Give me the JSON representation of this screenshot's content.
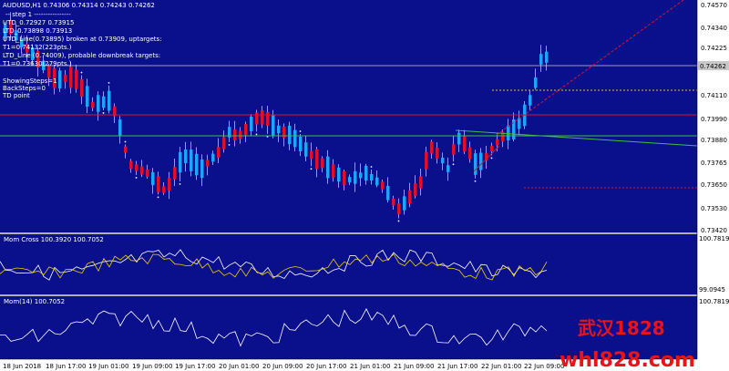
{
  "header": {
    "symbol_line": "AUDUSD,H1  0.74306 0.74314 0.74243 0.74262",
    "step_line": "-- step 1  ----------------",
    "info_lines": [
      "UTD_0.72927  0.73915",
      "LTD_0.73898  0.73913",
      "UTD_Line(0.73895) broken at 0.73909, uptargets:",
      "T1=0.74132(223pts.)",
      "LTD_Line (0.74009), probable downbreak targets:",
      "T1=0.73630(279pts.)"
    ],
    "status_lines": [
      "ShowingSteps=1",
      "BackSteps=0",
      "TD point"
    ]
  },
  "price_axis": {
    "ticks": [
      "0.74570",
      "0.74340",
      "0.74225",
      "0.74110",
      "0.73990",
      "0.73880",
      "0.73765",
      "0.73650",
      "0.73530",
      "0.73420"
    ],
    "current_price": "0.74262"
  },
  "time_axis": {
    "ticks": [
      "18 Jun 2018",
      "18 Jun 17:00",
      "19 Jun 01:00",
      "19 Jun 09:00",
      "19 Jun 17:00",
      "20 Jun 01:00",
      "20 Jun 09:00",
      "20 Jun 17:00",
      "21 Jun 01:00",
      "21 Jun 09:00",
      "21 Jun 17:00",
      "22 Jun 01:00",
      "22 Jun 09:00"
    ]
  },
  "panels": {
    "mom_cross": {
      "label": "Mom Cross 100.3920 100.7052",
      "ticks": [
        "100.7819",
        "99.0945"
      ]
    },
    "mom": {
      "label": "Mom(14) 100.7052",
      "ticks": [
        "100.7819"
      ]
    }
  },
  "watermark": {
    "line1": "武汉1828",
    "line2": "whl828.com"
  },
  "colors": {
    "background": "#0a0f8c",
    "bull": "#1ea4ff",
    "bear": "#e0102a",
    "text": "#ffffff",
    "up_line": "#e0102a",
    "down_line": "#3fc040"
  }
}
